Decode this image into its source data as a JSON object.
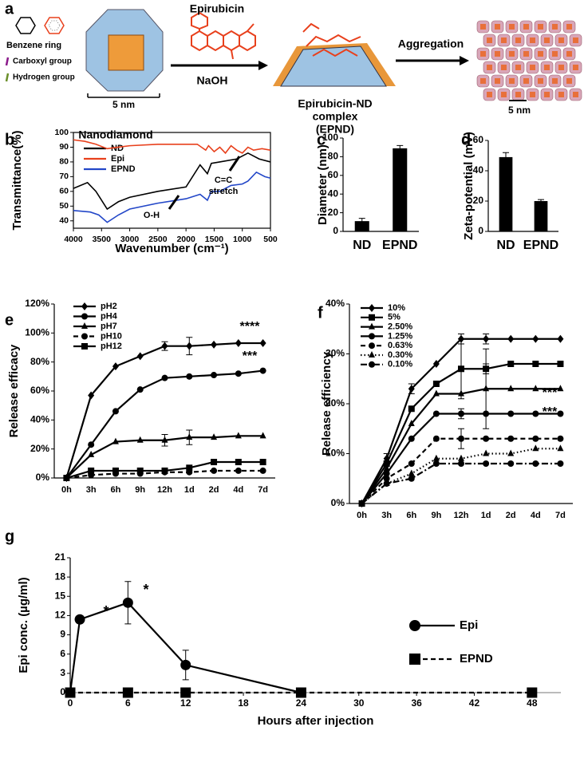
{
  "schematic": {
    "label": "a",
    "legend": [
      "Benzene ring",
      "Carboxyl group",
      "Hydrogen group"
    ],
    "scale_left": "5 nm",
    "nanodiamond": "Nanodiamond",
    "drug": "Epirubicin",
    "reagent": "NaOH",
    "complex": [
      "Epirubicin-ND",
      "complex",
      "(EPND)"
    ],
    "step": "Aggregation",
    "scale_right": "5 nm"
  },
  "chart_data": [
    {
      "label": "b",
      "type": "line",
      "x_label": "Wavenumber (cm⁻¹)",
      "y_label": "Transmittance(%)",
      "xlim": [
        4000,
        500
      ],
      "xticks": [
        4000,
        3500,
        3000,
        2500,
        2000,
        1500,
        1000,
        500
      ],
      "ylim": [
        35,
        100
      ],
      "yticks": [
        40,
        50,
        60,
        70,
        80,
        90,
        100
      ],
      "frame": true,
      "legend": "upper left",
      "series": [
        {
          "name": "ND",
          "color": "#000000",
          "x": [
            4000,
            3750,
            3600,
            3400,
            3200,
            3000,
            2500,
            2000,
            1750,
            1620,
            1550,
            1400,
            1100,
            900,
            700,
            500
          ],
          "values": [
            62,
            66,
            60,
            48,
            53,
            56,
            60,
            63,
            78,
            72,
            79,
            80,
            82,
            86,
            82,
            80
          ]
        },
        {
          "name": "Epi",
          "color": "#e8401c",
          "x": [
            4000,
            3800,
            3600,
            3400,
            3200,
            3000,
            2500,
            2000,
            1800,
            1650,
            1600,
            1500,
            1400,
            1300,
            1200,
            1100,
            1000,
            900,
            800,
            650,
            500
          ],
          "values": [
            95,
            94,
            92,
            89,
            90,
            91,
            92,
            92,
            92,
            88,
            91,
            87,
            90,
            86,
            91,
            88,
            86,
            90,
            88,
            89,
            88
          ]
        },
        {
          "name": "EPND",
          "color": "#2347c8",
          "x": [
            4000,
            3700,
            3550,
            3400,
            3200,
            3000,
            2500,
            2000,
            1750,
            1620,
            1550,
            1400,
            1200,
            1000,
            900,
            750,
            600,
            500
          ],
          "values": [
            47,
            46,
            44,
            39,
            44,
            48,
            52,
            55,
            58,
            54,
            60,
            60,
            64,
            65,
            67,
            73,
            70,
            69
          ]
        }
      ],
      "annotations": [
        "O-H",
        "C=C",
        "stretch"
      ]
    },
    {
      "label": "c",
      "type": "bar",
      "y_label": "Diameter (nm)",
      "categories": [
        "ND",
        "EPND"
      ],
      "values": [
        11,
        89
      ],
      "errors": [
        3,
        3
      ],
      "color": "#000000",
      "ylim": [
        0,
        100
      ],
      "yticks": [
        0,
        20,
        40,
        60,
        80,
        100
      ]
    },
    {
      "label": "d",
      "type": "bar",
      "y_label": "Zeta-potential (mV)",
      "categories": [
        "ND",
        "EPND"
      ],
      "values": [
        49,
        20
      ],
      "errors": [
        3,
        1
      ],
      "color": "#000000",
      "ylim": [
        0,
        60
      ],
      "yticks": [
        0,
        20,
        40,
        60
      ]
    },
    {
      "label": "e",
      "type": "line",
      "y_label": "Release efficacy",
      "categories": [
        "0h",
        "3h",
        "6h",
        "9h",
        "12h",
        "1d",
        "2d",
        "4d",
        "7d"
      ],
      "ylim": [
        0,
        120
      ],
      "yticks": [
        {
          "value": 0,
          "label": "0%"
        },
        {
          "value": 20,
          "label": "20%"
        },
        {
          "value": 40,
          "label": "40%"
        },
        {
          "value": 60,
          "label": "60%"
        },
        {
          "value": 80,
          "label": "80%"
        },
        {
          "value": 100,
          "label": "100%"
        },
        {
          "value": 120,
          "label": "120%"
        }
      ],
      "legend": "upper left",
      "series": [
        {
          "name": "pH2",
          "color": "#000000",
          "marker": "diamond",
          "dash": "solid",
          "values": [
            0,
            57,
            77,
            84,
            91,
            91,
            92,
            93,
            93
          ],
          "errors": [
            null,
            null,
            null,
            null,
            3,
            6,
            null,
            null,
            null
          ]
        },
        {
          "name": "pH4",
          "color": "#000000",
          "marker": "circle",
          "dash": "solid",
          "values": [
            0,
            23,
            46,
            61,
            69,
            70,
            71,
            72,
            74
          ]
        },
        {
          "name": "pH7",
          "color": "#000000",
          "marker": "triangle",
          "dash": "solid",
          "values": [
            0,
            16,
            25,
            26,
            26,
            28,
            28,
            29,
            29
          ],
          "errors": [
            null,
            null,
            null,
            null,
            4,
            5,
            null,
            null,
            null
          ]
        },
        {
          "name": "pH10",
          "color": "#000000",
          "marker": "circle",
          "dash": "dashed",
          "values": [
            0,
            2,
            3,
            3,
            4,
            4,
            5,
            5,
            5
          ]
        },
        {
          "name": "pH12",
          "color": "#000000",
          "marker": "square",
          "dash": "solid",
          "values": [
            0,
            5,
            5,
            5,
            5,
            7,
            11,
            11,
            11
          ]
        }
      ],
      "annotations": [
        "****",
        "***"
      ]
    },
    {
      "label": "f",
      "type": "line",
      "y_label": "Release efficiency",
      "categories": [
        "0h",
        "3h",
        "6h",
        "9h",
        "12h",
        "1d",
        "2d",
        "4d",
        "7d"
      ],
      "ylim": [
        0,
        40
      ],
      "yticks": [
        {
          "value": 0,
          "label": "0%"
        },
        {
          "value": 10,
          "label": "10%"
        },
        {
          "value": 20,
          "label": "20%"
        },
        {
          "value": 30,
          "label": "30%"
        },
        {
          "value": 40,
          "label": "40%"
        }
      ],
      "legend": "upper left",
      "series": [
        {
          "name": "10%",
          "color": "#000000",
          "marker": "diamond",
          "dash": "solid",
          "values": [
            0,
            9,
            23,
            28,
            33,
            33,
            33,
            33,
            33
          ],
          "errors": [
            null,
            1,
            1,
            null,
            1,
            1,
            null,
            null,
            null
          ]
        },
        {
          "name": "5%",
          "color": "#000000",
          "marker": "square",
          "dash": "solid",
          "values": [
            0,
            8,
            19,
            24,
            27,
            27,
            28,
            28,
            28
          ],
          "errors": [
            null,
            null,
            null,
            null,
            6,
            1,
            null,
            null,
            null
          ]
        },
        {
          "name": "2.50%",
          "color": "#000000",
          "marker": "triangle",
          "dash": "solid",
          "values": [
            0,
            7,
            16,
            22,
            22,
            23,
            23,
            23,
            23
          ],
          "errors": [
            null,
            null,
            null,
            null,
            null,
            8,
            null,
            null,
            null
          ]
        },
        {
          "name": "1.25%",
          "color": "#000000",
          "marker": "circle",
          "dash": "solid",
          "values": [
            0,
            6,
            13,
            18,
            18,
            18,
            18,
            18,
            18
          ],
          "errors": [
            null,
            null,
            null,
            null,
            1,
            null,
            null,
            null,
            null
          ]
        },
        {
          "name": "0.63%",
          "color": "#000000",
          "marker": "circle",
          "dash": "dashed",
          "values": [
            0,
            5,
            8,
            13,
            13,
            13,
            13,
            13,
            13
          ],
          "errors": [
            null,
            null,
            null,
            null,
            2,
            null,
            null,
            null,
            null
          ]
        },
        {
          "name": "0.30%",
          "color": "#000000",
          "marker": "triangle",
          "dash": "dotted",
          "values": [
            0,
            4,
            6,
            9,
            9,
            10,
            10,
            11,
            11
          ]
        },
        {
          "name": "0.10%",
          "color": "#000000",
          "marker": "circle",
          "dash": "dashdot",
          "values": [
            0,
            4,
            5,
            8,
            8,
            8,
            8,
            8,
            8
          ]
        }
      ],
      "annotations": [
        "***",
        "***"
      ]
    },
    {
      "label": "g",
      "type": "line",
      "x_label": "Hours after injection",
      "y_label": "Epi conc. (µg/ml)",
      "xlim": [
        0,
        51
      ],
      "xticks": [
        0,
        6,
        12,
        18,
        24,
        30,
        36,
        42,
        48
      ],
      "ylim": [
        0,
        21
      ],
      "yticks": [
        0,
        3,
        6,
        9,
        12,
        15,
        18,
        21
      ],
      "legend": "center right",
      "series": [
        {
          "name": "Epi",
          "color": "#000000",
          "marker": "circle",
          "dash": "solid",
          "x": [
            0,
            1,
            6,
            12,
            24
          ],
          "values": [
            0,
            11.4,
            14,
            4.3,
            0
          ],
          "errors": [
            null,
            0.5,
            3.3,
            2.3,
            null
          ]
        },
        {
          "name": "EPND",
          "color": "#000000",
          "marker": "square",
          "dash": "dashed",
          "x": [
            0,
            6,
            12,
            24,
            48
          ],
          "values": [
            0,
            0,
            0,
            0,
            0
          ]
        }
      ],
      "annotations": [
        "*",
        "*"
      ]
    }
  ]
}
